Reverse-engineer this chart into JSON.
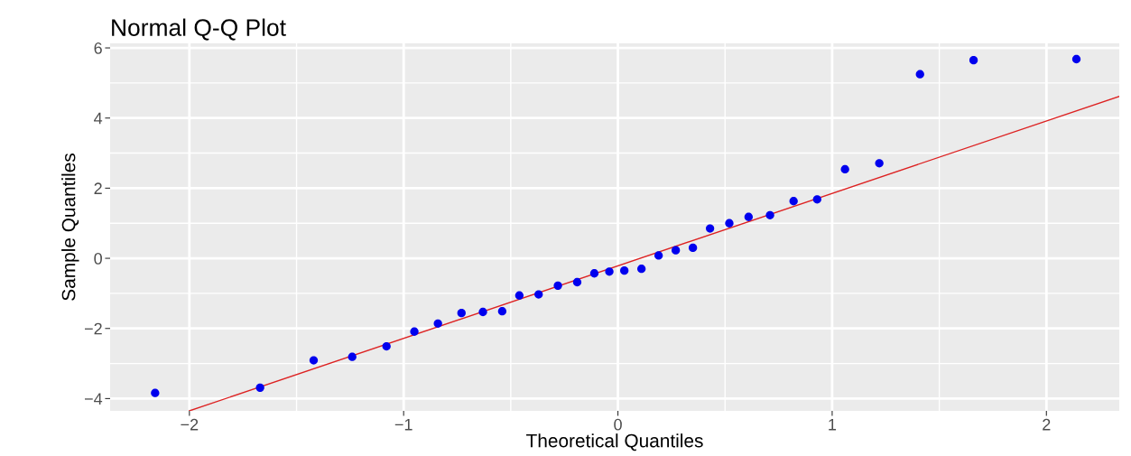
{
  "chart_data": {
    "type": "scatter",
    "title": "Normal Q-Q Plot",
    "xlabel": "Theoretical Quantiles",
    "ylabel": "Sample Quantiles",
    "xlim": [
      -2.37,
      2.34
    ],
    "ylim": [
      -4.35,
      6.13
    ],
    "xticks": [
      -2,
      -1,
      0,
      1,
      2
    ],
    "yticks": [
      -4,
      -2,
      0,
      2,
      4,
      6
    ],
    "grid": true,
    "series": [
      {
        "marker": "circle",
        "color": "#0000ee",
        "x": [
          -2.16,
          -1.67,
          -1.42,
          -1.24,
          -1.08,
          -0.95,
          -0.84,
          -0.73,
          -0.63,
          -0.54,
          -0.46,
          -0.37,
          -0.28,
          -0.19,
          -0.11,
          -0.04,
          0.03,
          0.11,
          0.19,
          0.27,
          0.35,
          0.43,
          0.52,
          0.61,
          0.71,
          0.82,
          0.93,
          1.06,
          1.22,
          1.41,
          1.66,
          2.14
        ],
        "values": [
          -3.84,
          -3.69,
          -2.91,
          -2.81,
          -2.51,
          -2.09,
          -1.86,
          -1.56,
          -1.53,
          -1.51,
          -1.06,
          -1.03,
          -0.78,
          -0.68,
          -0.43,
          -0.38,
          -0.35,
          -0.3,
          0.08,
          0.23,
          0.3,
          0.85,
          1.0,
          1.18,
          1.23,
          1.63,
          1.68,
          2.54,
          2.71,
          5.25,
          5.65,
          5.68
        ]
      },
      {
        "type": "line",
        "color": "#dd2222",
        "x": [
          -2.0,
          2.34
        ],
        "values": [
          -4.35,
          4.62
        ]
      }
    ]
  }
}
